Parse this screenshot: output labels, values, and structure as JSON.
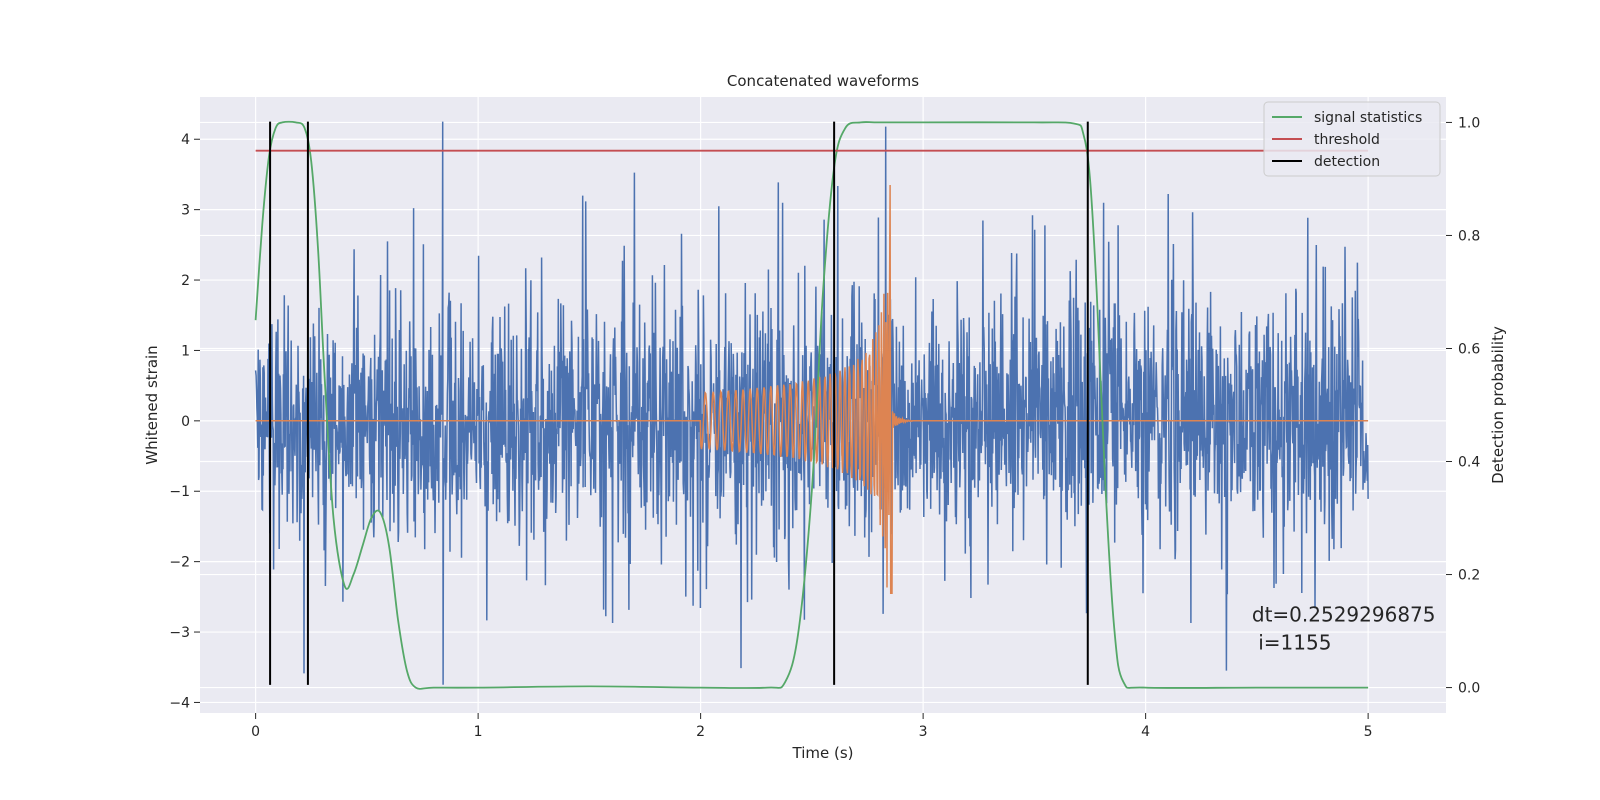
{
  "chart_data": {
    "type": "line",
    "title": "Concatenated waveforms",
    "xlabel": "Time (s)",
    "ylabel": "Whitened strain",
    "y2label": "Detection probability",
    "xlim": [
      -0.25,
      5.35
    ],
    "ylim": [
      -4.15,
      4.6
    ],
    "y2lim": [
      -0.045,
      1.045
    ],
    "xticks": [
      0,
      1,
      2,
      3,
      4,
      5
    ],
    "yticks": [
      -4,
      -3,
      -2,
      -1,
      0,
      1,
      2,
      3,
      4
    ],
    "y2ticks": [
      0.0,
      0.2,
      0.4,
      0.6,
      0.8,
      1.0
    ],
    "ytick_labels": [
      "−4",
      "−3",
      "−2",
      "−1",
      "0",
      "1",
      "2",
      "3",
      "4"
    ],
    "y2tick_labels": [
      "0.0",
      "0.2",
      "0.4",
      "0.6",
      "0.8",
      "1.0"
    ],
    "grid": true,
    "legend_position": "top-right",
    "colors": {
      "strain": "#4c72b0",
      "waveform": "#dd8452",
      "signal_statistics": "#55a868",
      "threshold": "#c44e52",
      "detection": "#000000",
      "plot_background": "#eaeaf2",
      "grid": "#ffffff"
    },
    "strain_noise": {
      "x_range": [
        0,
        5
      ],
      "typical_amplitude": 1.5,
      "peak_max": 4.25,
      "peak_min": -3.75
    },
    "injected_waveform": {
      "x_range": [
        2.0,
        2.86
      ],
      "start_amplitude": 0.4,
      "peak_time": 2.85,
      "peak_max": 3.35,
      "peak_min": -2.45
    },
    "series": [
      {
        "name": "signal statistics",
        "axis": "y2",
        "x": [
          0.0,
          0.03,
          0.06,
          0.09,
          0.12,
          0.18,
          0.22,
          0.25,
          0.28,
          0.31,
          0.35,
          0.4,
          0.44,
          0.48,
          0.52,
          0.56,
          0.6,
          0.64,
          0.68,
          0.72,
          0.8,
          1.0,
          1.5,
          2.0,
          2.3,
          2.38,
          2.44,
          2.5,
          2.55,
          2.6,
          2.65,
          2.72,
          2.8,
          3.0,
          3.5,
          3.68,
          3.72,
          3.75,
          3.78,
          3.82,
          3.86,
          3.9,
          4.0,
          4.5,
          5.0
        ],
        "y": [
          0.65,
          0.82,
          0.94,
          0.99,
          1.0,
          1.0,
          0.99,
          0.93,
          0.78,
          0.55,
          0.3,
          0.18,
          0.2,
          0.25,
          0.3,
          0.31,
          0.25,
          0.12,
          0.03,
          0.0,
          0.0,
          0.0,
          0.002,
          0.0,
          0.0,
          0.01,
          0.1,
          0.35,
          0.7,
          0.92,
          0.99,
          1.0,
          1.0,
          1.0,
          1.0,
          0.998,
          0.98,
          0.9,
          0.7,
          0.35,
          0.1,
          0.01,
          0.0,
          0.0,
          0.0
        ]
      },
      {
        "name": "threshold",
        "axis": "y2",
        "x": [
          0.0,
          5.0
        ],
        "y": [
          0.95,
          0.95
        ]
      },
      {
        "name": "detection",
        "type": "vlines",
        "x": [
          0.065,
          0.235,
          2.6,
          3.74
        ],
        "y_range": [
          -3.75,
          4.25
        ]
      }
    ],
    "annotations": [
      {
        "text": "dt=0.2529296875",
        "x": 4.5,
        "y": -2.85
      },
      {
        "text": " i=1155",
        "x": 4.5,
        "y": -3.25
      }
    ]
  }
}
